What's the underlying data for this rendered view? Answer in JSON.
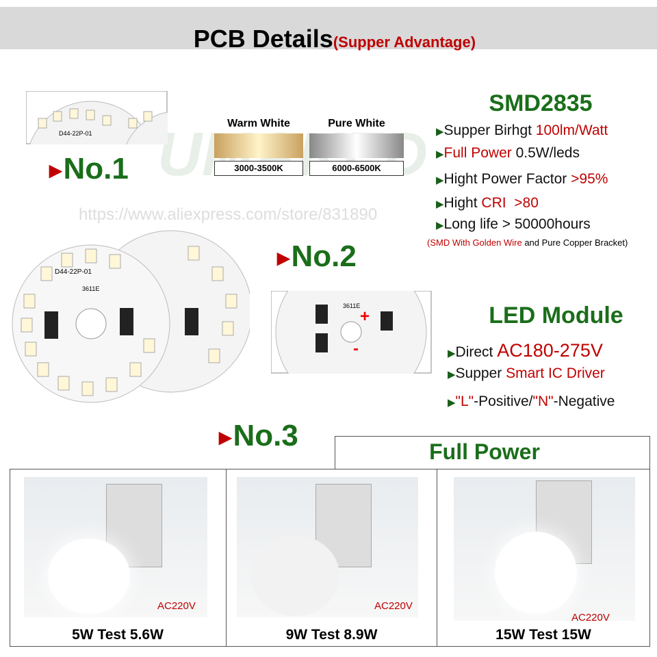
{
  "header": {
    "title": "PCB Details",
    "subtitle": "(Supper Advantage)"
  },
  "colors": {
    "warm": {
      "label": "Warm White",
      "range": "3000-3500K"
    },
    "pure": {
      "label": "Pure White",
      "range": "6000-6500K"
    }
  },
  "badges": [
    "No.1",
    "No.2",
    "No.3"
  ],
  "pcb_labels": {
    "model": "D44-22P-01",
    "chip": "3611E"
  },
  "watermark": {
    "brand": "UMAKED",
    "url": "https://www.aliexpress.com/store/831890"
  },
  "smd": {
    "title": "SMD2835",
    "bullets": [
      [
        "Supper Birhgt ",
        "100lm/Watt"
      ],
      [
        "Full Power",
        " 0.5W/leds"
      ],
      [
        "Hight Power Factor ",
        ">95%"
      ],
      [
        "Hight ",
        "CRI",
        "  >80"
      ],
      [
        "Long life > 50000hours"
      ]
    ],
    "note": [
      "(SMD With Golden Wire",
      " and Pure Copper Bracket)"
    ]
  },
  "module": {
    "title": "LED Module",
    "bullets": [
      [
        "Direct ",
        "AC180-275V"
      ],
      [
        "Supper ",
        "Smart IC Driver"
      ],
      [
        "\"L\"",
        "-Positive/",
        "\"N\"",
        "-Negative"
      ]
    ]
  },
  "full_power": {
    "title": "Full Power",
    "tests": [
      {
        "voltage": "AC220V",
        "caption": "5W  Test  5.6W"
      },
      {
        "voltage": "AC220V",
        "caption": "9W Test 8.9W"
      },
      {
        "voltage": "AC220V",
        "caption": "15W  Test 15W"
      }
    ]
  }
}
